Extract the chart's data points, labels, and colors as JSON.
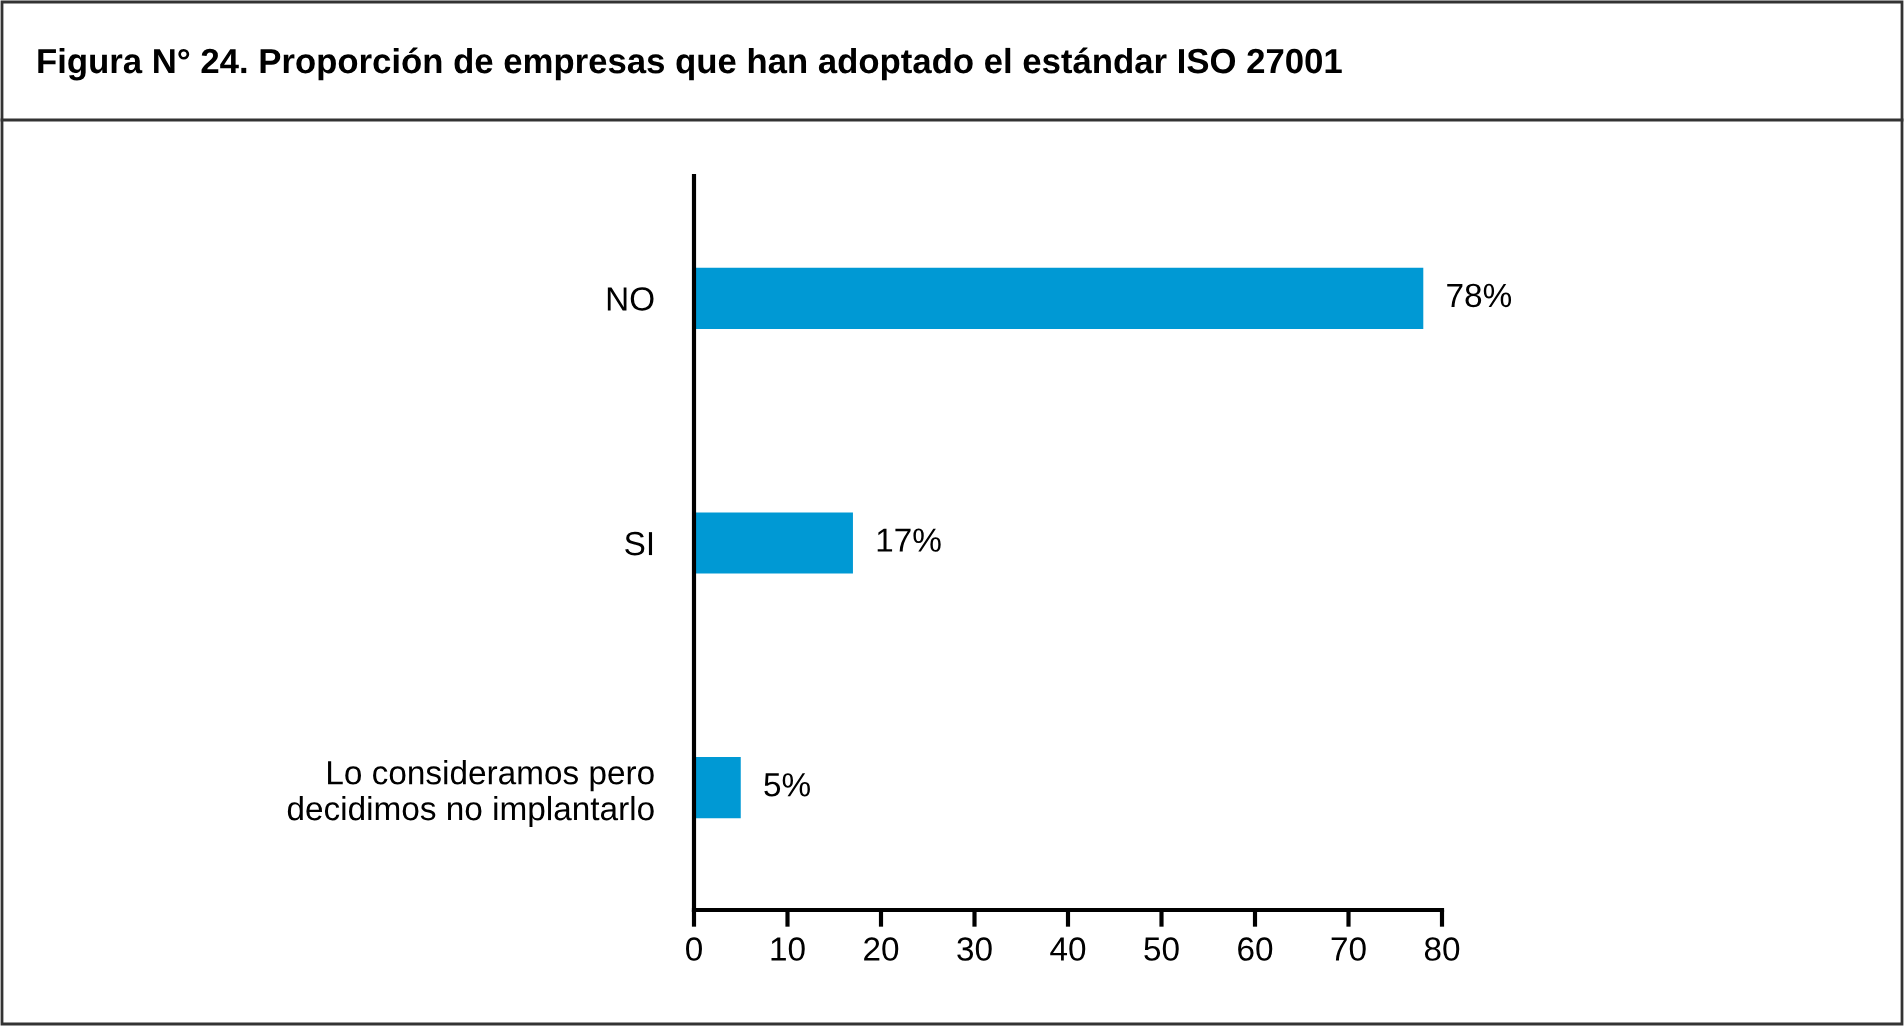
{
  "chart_data": {
    "type": "bar",
    "orientation": "horizontal",
    "title": "Figura N° 24. Proporción de empresas que han adoptado el estándar ISO 27001",
    "categories": [
      "NO",
      "SI",
      "Lo consideramos pero\ndecidimos no implantarlo"
    ],
    "values": [
      78,
      17,
      5
    ],
    "value_labels": [
      "78%",
      "17%",
      "5%"
    ],
    "color": "#0099d4",
    "xlim": [
      0,
      80
    ],
    "xticks": [
      0,
      10,
      20,
      30,
      40,
      50,
      60,
      70,
      80
    ],
    "grid": false,
    "legend": false
  }
}
